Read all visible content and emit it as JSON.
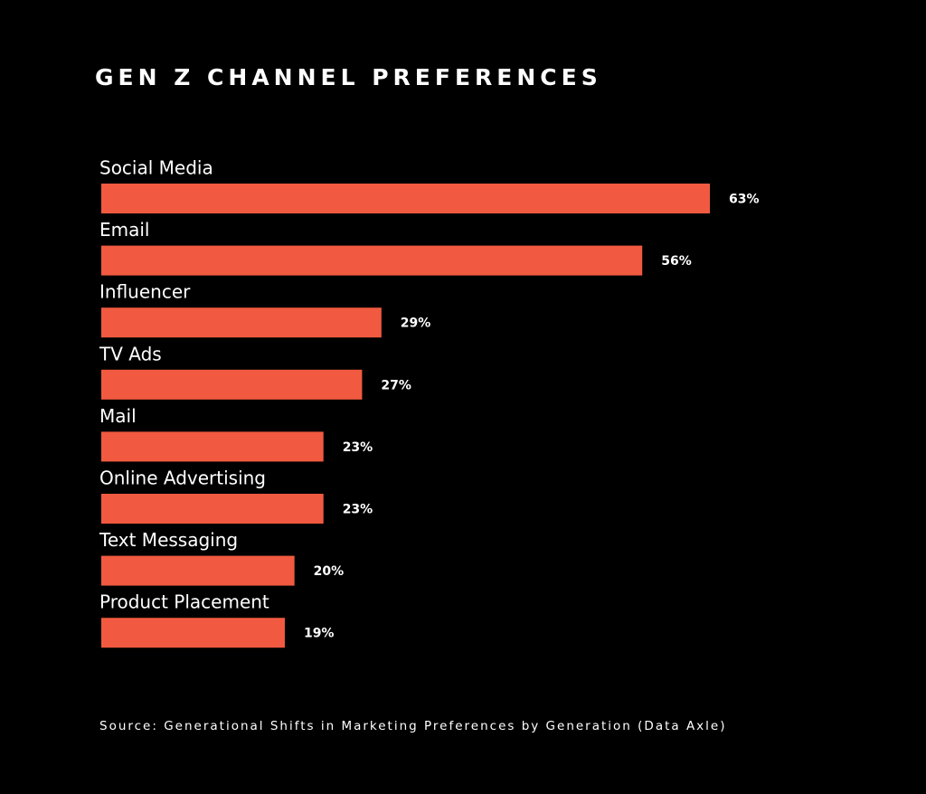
{
  "chart_data": {
    "type": "hbar",
    "title": "GEN Z CHANNEL PREFERENCES",
    "categories": [
      "Social Media",
      "Email",
      "Influencer",
      "TV Ads",
      "Mail",
      "Online Advertising",
      "Text Messaging",
      "Product Placement"
    ],
    "values": [
      63,
      56,
      29,
      27,
      23,
      23,
      20,
      19
    ],
    "value_labels": [
      "63%",
      "56%",
      "29%",
      "27%",
      "23%",
      "23%",
      "20%",
      "19%"
    ],
    "color": "#f15a40",
    "source": "Source: Generational Shifts in Marketing Preferences by Generation (Data Axle)"
  }
}
